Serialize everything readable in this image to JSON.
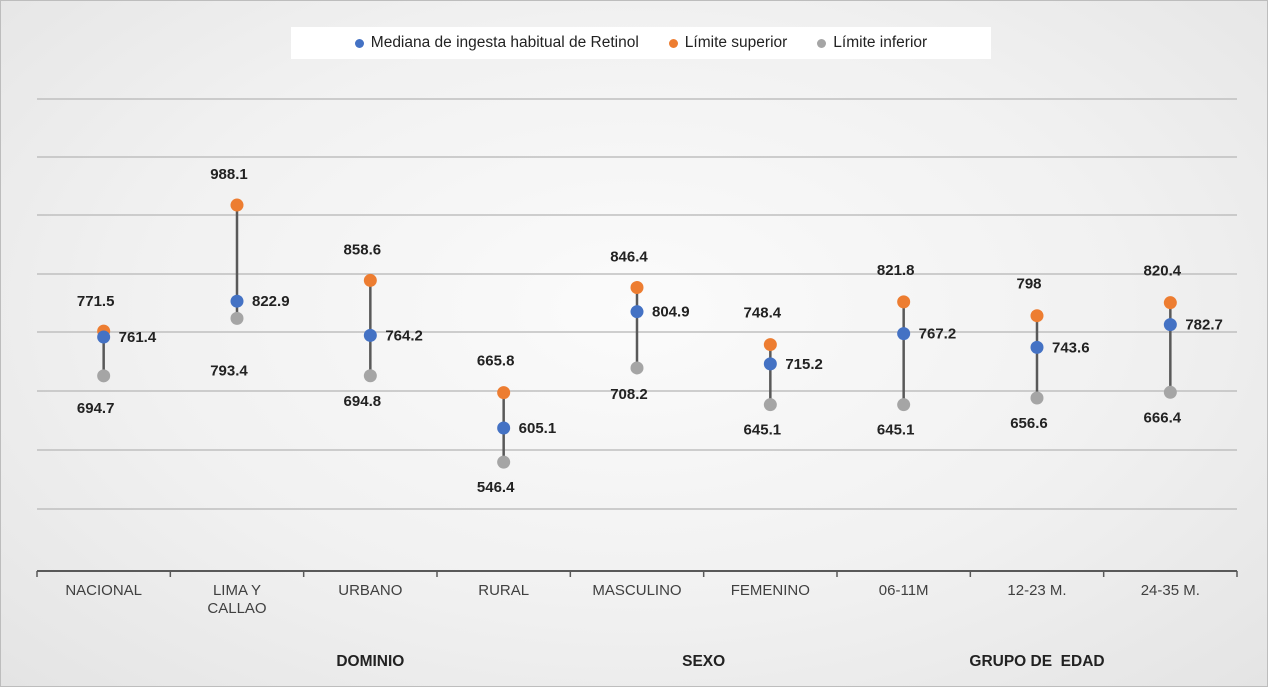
{
  "colors": {
    "median": "#4472c4",
    "upper": "#ed7d31",
    "lower": "#a5a5a5",
    "connector": "#595959",
    "grid": "#bfbfbf"
  },
  "legend": {
    "median_label": "Mediana de ingesta habitual de Retinol",
    "upper_label": "Límite superior",
    "lower_label": "Límite inferior"
  },
  "chart_data": {
    "type": "scatter",
    "subtype": "high-low range with median",
    "title": "",
    "xlabel": "",
    "ylabel": "",
    "categories": [
      [
        "NACIONAL"
      ],
      [
        "LIMA Y",
        "CALLAO"
      ],
      [
        "URBANO"
      ],
      [
        "RURAL"
      ],
      [
        "MASCULINO"
      ],
      [
        "FEMENINO"
      ],
      [
        "06-11M"
      ],
      [
        "12-23 M."
      ],
      [
        "24-35 M."
      ]
    ],
    "groups": [
      {
        "label": "",
        "span": [
          0,
          0
        ]
      },
      {
        "label": "DOMINIO",
        "span": [
          1,
          3
        ]
      },
      {
        "label": "SEXO",
        "span": [
          4,
          5
        ]
      },
      {
        "label": "GRUPO DE  EDAD",
        "span": [
          6,
          8
        ]
      }
    ],
    "series": [
      {
        "name": "Mediana de ingesta habitual de Retinol",
        "values": [
          761.4,
          822.9,
          764.2,
          605.1,
          804.9,
          715.2,
          767.2,
          743.6,
          782.7
        ]
      },
      {
        "name": "Límite superior",
        "values": [
          771.5,
          988.1,
          858.6,
          665.8,
          846.4,
          748.4,
          821.8,
          798,
          820.4
        ]
      },
      {
        "name": "Límite inferior",
        "values": [
          694.7,
          793.4,
          694.8,
          546.4,
          708.2,
          645.1,
          645.1,
          656.6,
          666.4
        ]
      }
    ],
    "label_text": {
      "median": [
        "761.4",
        "822.9",
        "764.2",
        "605.1",
        "804.9",
        "715.2",
        "767.2",
        "743.6",
        "782.7"
      ],
      "upper": [
        "771.5",
        "988.1",
        "858.6",
        "665.8",
        "846.4",
        "748.4",
        "821.8",
        "798",
        "820.4"
      ],
      "lower": [
        "694.7",
        "793.4",
        "694.8",
        "546.4",
        "708.2",
        "645.1",
        "645.1",
        "656.6",
        "666.4"
      ]
    },
    "y_axis_visible": false,
    "grid": true,
    "legend_position": "top"
  }
}
